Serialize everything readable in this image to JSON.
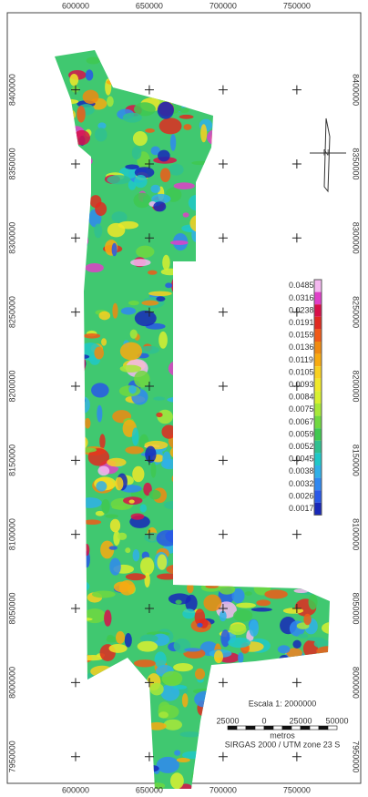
{
  "map": {
    "x_ticks": [
      600000,
      650000,
      700000,
      750000
    ],
    "y_ticks": [
      8400000,
      8350000,
      8300000,
      8250000,
      8200000,
      8150000,
      8100000,
      8050000,
      8000000,
      7950000
    ],
    "xlim": [
      553700,
      793300
    ],
    "ylim": [
      7932000,
      8452000
    ],
    "north": "N",
    "legend": {
      "labels": [
        0.0485,
        0.0316,
        0.0238,
        0.0191,
        0.0159,
        0.0136,
        0.0119,
        0.0105,
        0.0093,
        0.0084,
        0.0075,
        0.0067,
        0.0059,
        0.0052,
        0.0045,
        0.0038,
        0.0032,
        0.0026,
        0.0017
      ],
      "colors": [
        "#f4b8f0",
        "#e040c8",
        "#d8104a",
        "#e02a20",
        "#f05a18",
        "#f08a10",
        "#f8aa10",
        "#f8d020",
        "#f0e828",
        "#d8f030",
        "#a8e838",
        "#70d840",
        "#40c850",
        "#30c090",
        "#20c8c8",
        "#30b0e8",
        "#3088f0",
        "#2858e8",
        "#1828b8"
      ]
    },
    "scale_title": "Escala 1: 2000000",
    "scale_labels": [
      "25000",
      "0",
      "25000",
      "50000"
    ],
    "scale_unit": "metros",
    "crs": "SIRGAS 2000 / UTM zone 23 S"
  }
}
